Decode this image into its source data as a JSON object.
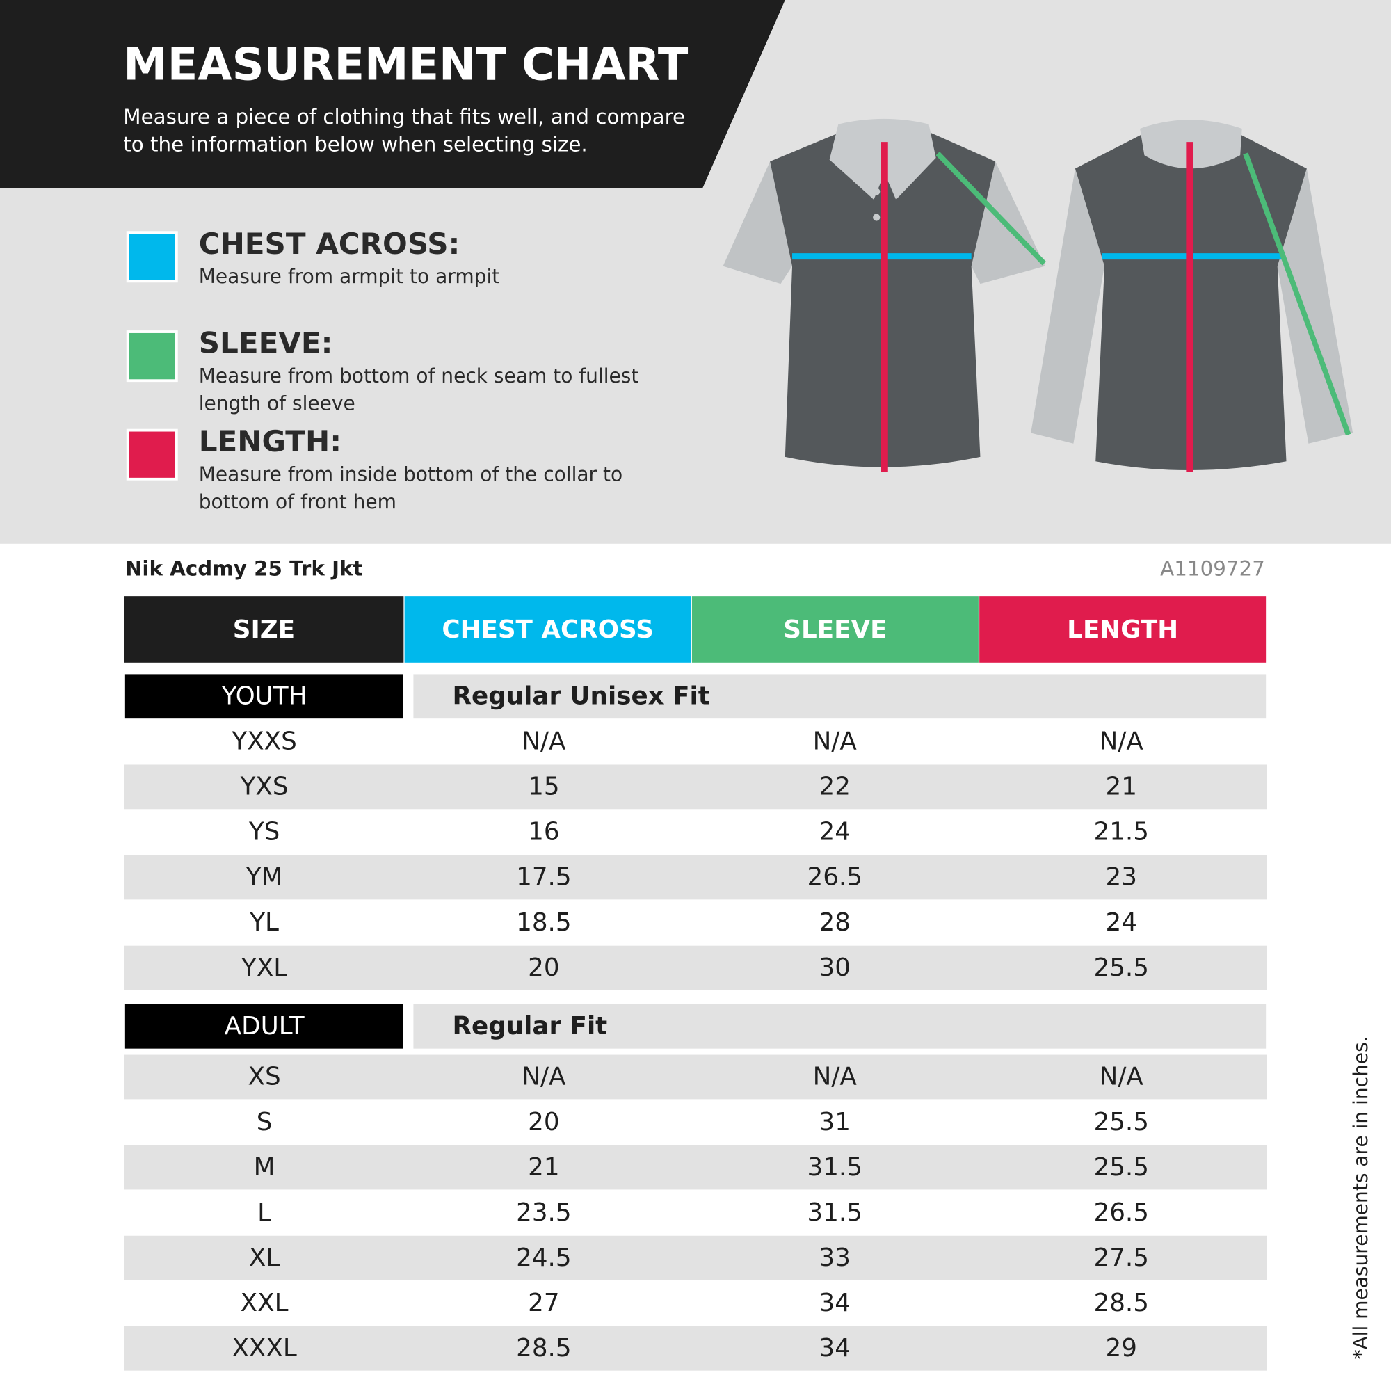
{
  "header": {
    "title": "MEASUREMENT CHART",
    "subtitle": [
      "Measure a piece of clothing that fits well, and compare",
      "to the information below when selecting size."
    ]
  },
  "legend": [
    {
      "label": "CHEST ACROSS:",
      "color": "#00b8ec",
      "description": [
        "Measure from armpit to armpit"
      ]
    },
    {
      "label": "SLEEVE:",
      "color": "#4cbb78",
      "description": [
        "Measure from bottom of neck seam to fullest",
        "length of sleeve"
      ]
    },
    {
      "label": "LENGTH:",
      "color": "#e01c4d",
      "description": [
        "Measure from inside bottom of the collar to",
        "bottom of front hem"
      ]
    }
  ],
  "table": {
    "product": "Nik Acdmy 25 Trk Jkt",
    "code": "A1109727",
    "headers": [
      {
        "text": "SIZE",
        "color": "#1e1e1e"
      },
      {
        "text": "CHEST ACROSS",
        "color": "#00b8ec"
      },
      {
        "text": "SLEEVE",
        "color": "#4cbb78"
      },
      {
        "text": "LENGTH",
        "color": "#e01c4d"
      }
    ],
    "groups": [
      {
        "label": "YOUTH",
        "fit": "Regular Unisex Fit",
        "rows": [
          [
            "YXXS",
            "N/A",
            "N/A",
            "N/A"
          ],
          [
            "YXS",
            "15",
            "22",
            "21"
          ],
          [
            "YS",
            "16",
            "24",
            "21.5"
          ],
          [
            "YM",
            "17.5",
            "26.5",
            "23"
          ],
          [
            "YL",
            "18.5",
            "28",
            "24"
          ],
          [
            "YXL",
            "20",
            "30",
            "25.5"
          ]
        ]
      },
      {
        "label": "ADULT",
        "fit": "Regular Fit",
        "rows": [
          [
            "XS",
            "N/A",
            "N/A",
            "N/A"
          ],
          [
            "S",
            "20",
            "31",
            "25.5"
          ],
          [
            "M",
            "21",
            "31.5",
            "25.5"
          ],
          [
            "L",
            "23.5",
            "31.5",
            "26.5"
          ],
          [
            "XL",
            "24.5",
            "33",
            "27.5"
          ],
          [
            "XXL",
            "27",
            "34",
            "28.5"
          ],
          [
            "XXXL",
            "28.5",
            "34",
            "29"
          ]
        ]
      }
    ]
  },
  "footnote": "*All measurements are in inches."
}
